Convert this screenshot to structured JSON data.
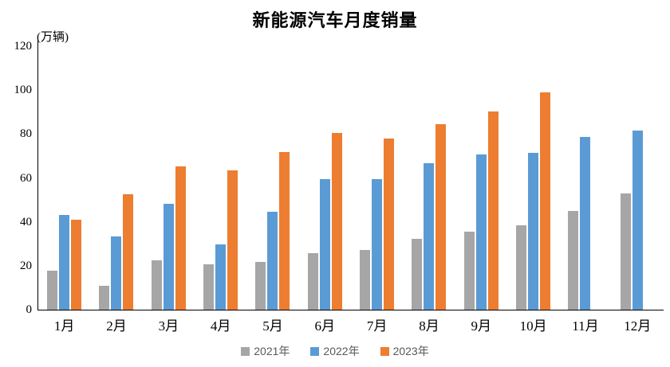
{
  "title": "新能源汽车月度销量",
  "chart_data": {
    "type": "bar",
    "title": "新能源汽车月度销量",
    "ylabel": "(万辆)",
    "xlabel": "",
    "categories": [
      "1月",
      "2月",
      "3月",
      "4月",
      "5月",
      "6月",
      "7月",
      "8月",
      "9月",
      "10月",
      "11月",
      "12月"
    ],
    "series": [
      {
        "name": "2021年",
        "color": "#A6A6A6",
        "values": [
          17.9,
          11.0,
          22.6,
          20.6,
          21.7,
          25.6,
          27.1,
          32.1,
          35.7,
          38.3,
          45.0,
          53.1
        ]
      },
      {
        "name": "2022年",
        "color": "#5B9BD5",
        "values": [
          43.1,
          33.4,
          48.4,
          29.9,
          44.7,
          59.6,
          59.3,
          66.6,
          70.8,
          71.4,
          78.6,
          81.4
        ]
      },
      {
        "name": "2023年",
        "color": "#ED7D31",
        "values": [
          40.8,
          52.5,
          65.3,
          63.6,
          71.7,
          80.6,
          78.0,
          84.6,
          90.4,
          98.9,
          null,
          null
        ]
      }
    ],
    "y_ticks": [
      0,
      20,
      40,
      60,
      80,
      100,
      120
    ],
    "ylim": [
      0,
      120
    ],
    "grid": false,
    "legend_position": "bottom",
    "axis_color": "#000000",
    "legend_text_color": "#595959",
    "background_color": "#FFFFFF"
  }
}
